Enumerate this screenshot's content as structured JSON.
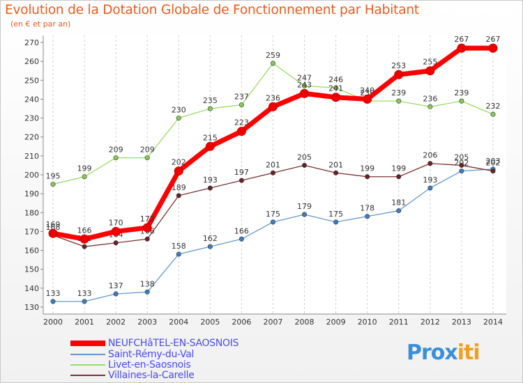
{
  "title": "Evolution de la Dotation Globale de Fonctionnement par Habitant",
  "subtitle": "(en € et par an)",
  "chart_data": {
    "type": "line",
    "title": "Evolution de la Dotation Globale de Fonctionnement par Habitant",
    "ylabel": "(en € et par an)",
    "xlabel": "",
    "x": [
      "2000",
      "2001",
      "2002",
      "2003",
      "2004",
      "2005",
      "2006",
      "2007",
      "2008",
      "2009",
      "2010",
      "2011",
      "2012",
      "2013",
      "2014"
    ],
    "ylim": [
      130,
      270
    ],
    "yticks": [
      130,
      140,
      150,
      160,
      170,
      180,
      190,
      200,
      210,
      220,
      230,
      240,
      250,
      260,
      270
    ],
    "grid": "vertical dashed",
    "legend_position": "bottom-left",
    "series": [
      {
        "name": "Livet-en-Saosnois",
        "color": "#99dd66",
        "marker": "#88cc55",
        "values": [
          195,
          199,
          209,
          209,
          230,
          235,
          237,
          259,
          247,
          246,
          239,
          239,
          236,
          239,
          232
        ]
      },
      {
        "name": "Saint-Rémy-du-Val",
        "color": "#6699cc",
        "marker": "#3b7fc4",
        "values": [
          133,
          133,
          137,
          138,
          158,
          162,
          166,
          175,
          179,
          175,
          178,
          181,
          193,
          202,
          203
        ]
      },
      {
        "name": "Villaines-la-Carelle",
        "color": "#7a3333",
        "marker": "#6a2222",
        "values": [
          168,
          162,
          164,
          166,
          189,
          193,
          197,
          201,
          205,
          201,
          199,
          199,
          206,
          205,
          202
        ]
      },
      {
        "name": "NEUFCHâTEL-EN-SAOSNOIS",
        "color": "#ff0000",
        "marker": "#ee0000",
        "values": [
          169,
          166,
          170,
          172,
          202,
          215,
          223,
          236,
          243,
          241,
          240,
          253,
          255,
          267,
          267
        ]
      }
    ]
  },
  "legend": [
    {
      "name": "NEUFCHâTEL-EN-SAOSNOIS",
      "color": "#ff0000"
    },
    {
      "name": "Saint-Rémy-du-Val",
      "color": "#6699cc"
    },
    {
      "name": "Livet-en-Saosnois",
      "color": "#99dd66"
    },
    {
      "name": "Villaines-la-Carelle",
      "color": "#7a3333"
    }
  ],
  "logo": {
    "text": "Prox",
    "text2": "iti"
  }
}
